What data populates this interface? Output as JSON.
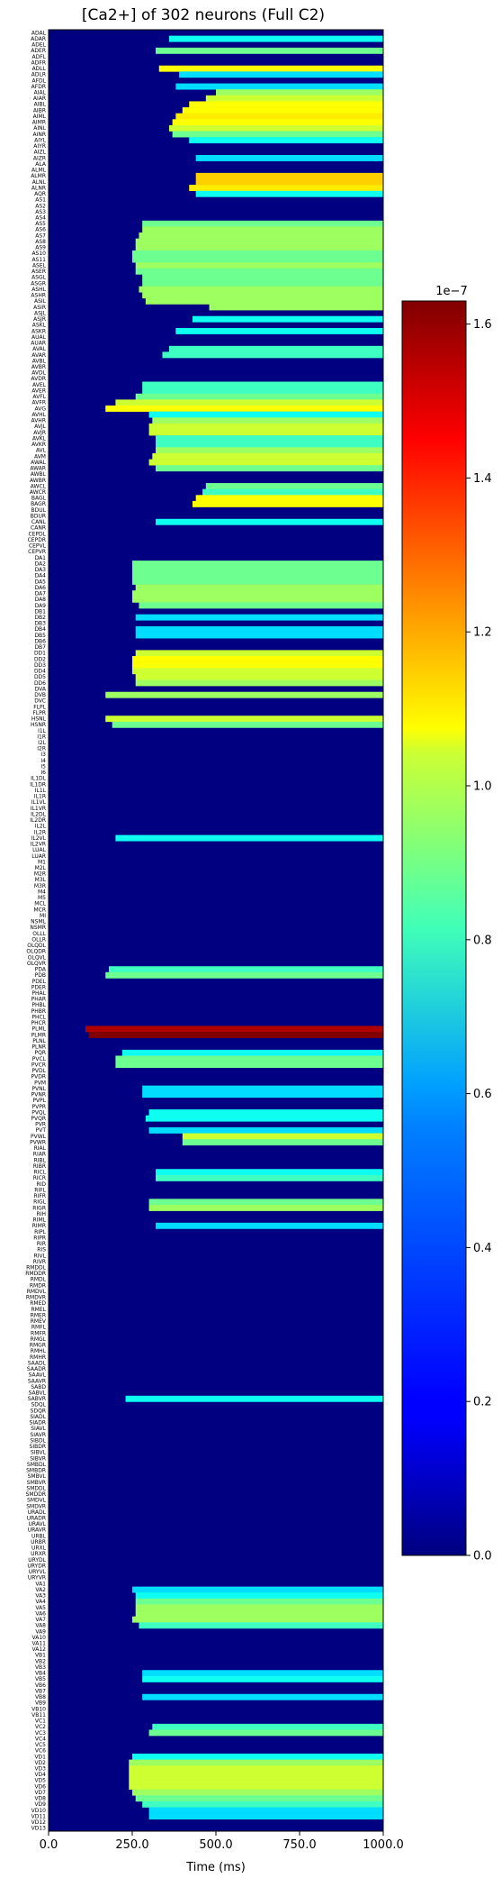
{
  "chart_data": {
    "type": "heatmap",
    "title": "[Ca2+] of 302 neurons (Full C2)",
    "xlabel": "Time (ms)",
    "ylabel": "",
    "xlim": [
      0,
      1000
    ],
    "x_ticks": [
      0,
      250,
      500,
      750,
      1000
    ],
    "x_tick_labels": [
      "0.0",
      "250.0",
      "500.0",
      "750.0",
      "1000.0"
    ],
    "n_rows": 302,
    "colormap": "jet",
    "colorbar": {
      "vmin": 0,
      "vmax": 1.63e-07,
      "ticks": [
        0,
        0.2,
        0.4,
        0.6,
        0.8,
        1.0,
        1.2,
        1.4,
        1.6
      ],
      "tick_labels": [
        "0.0",
        "0.2",
        "0.4",
        "0.6",
        "0.8",
        "1.0",
        "1.2",
        "1.4",
        "1.6"
      ],
      "offset_label": "1e−7",
      "placement": "right"
    },
    "neurons": [
      "ADAL",
      "ADAR",
      "ADEL",
      "ADER",
      "ADFL",
      "ADFR",
      "ADLL",
      "ADLR",
      "AFDL",
      "AFDR",
      "AIAL",
      "AIAR",
      "AIBL",
      "AIBR",
      "AIML",
      "AIMR",
      "AINL",
      "AINR",
      "AIYL",
      "AIYR",
      "AIZL",
      "AIZR",
      "ALA",
      "ALML",
      "ALMR",
      "ALNL",
      "ALNR",
      "AQR",
      "AS1",
      "AS2",
      "AS3",
      "AS4",
      "AS5",
      "AS6",
      "AS7",
      "AS8",
      "AS9",
      "AS10",
      "AS11",
      "ASEL",
      "ASER",
      "ASGL",
      "ASGR",
      "ASHL",
      "ASHR",
      "ASIL",
      "ASIR",
      "ASJL",
      "ASJR",
      "ASKL",
      "ASKR",
      "AUAL",
      "AUAR",
      "AVAL",
      "AVAR",
      "AVBL",
      "AVBR",
      "AVDL",
      "AVDR",
      "AVEL",
      "AVER",
      "AVFL",
      "AVFR",
      "AVG",
      "AVHL",
      "AVHR",
      "AVJL",
      "AVJR",
      "AVKL",
      "AVKR",
      "AVL",
      "AVM",
      "AWAL",
      "AWAR",
      "AWBL",
      "AWBR",
      "AWCL",
      "AWCR",
      "BAGL",
      "BAGR",
      "BDUL",
      "BDUR",
      "CANL",
      "CANR",
      "CEPDL",
      "CEPDR",
      "CEPVL",
      "CEPVR",
      "DA1",
      "DA2",
      "DA3",
      "DA4",
      "DA5",
      "DA6",
      "DA7",
      "DA8",
      "DA9",
      "DB1",
      "DB2",
      "DB3",
      "DB4",
      "DB5",
      "DB6",
      "DB7",
      "DD1",
      "DD2",
      "DD3",
      "DD4",
      "DD5",
      "DD6",
      "DVA",
      "DVB",
      "DVC",
      "FLPL",
      "FLPR",
      "HSNL",
      "HSNR",
      "I1L",
      "I1R",
      "I2L",
      "I2R",
      "I3",
      "I4",
      "I5",
      "I6",
      "IL1DL",
      "IL1DR",
      "IL1L",
      "IL1R",
      "IL1VL",
      "IL1VR",
      "IL2DL",
      "IL2DR",
      "IL2L",
      "IL2R",
      "IL2VL",
      "IL2VR",
      "LUAL",
      "LUAR",
      "M1",
      "M2L",
      "M2R",
      "M3L",
      "M3R",
      "M4",
      "M5",
      "MCL",
      "MCR",
      "MI",
      "NSML",
      "NSMR",
      "OLLL",
      "OLLR",
      "OLQDL",
      "OLQDR",
      "OLQVL",
      "OLQVR",
      "PDA",
      "PDB",
      "PDEL",
      "PDER",
      "PHAL",
      "PHAR",
      "PHBL",
      "PHBR",
      "PHCL",
      "PHCR",
      "PLML",
      "PLMR",
      "PLNL",
      "PLNR",
      "PQR",
      "PVCL",
      "PVCR",
      "PVDL",
      "PVDR",
      "PVM",
      "PVNL",
      "PVNR",
      "PVPL",
      "PVPR",
      "PVQL",
      "PVQR",
      "PVR",
      "PVT",
      "PVWL",
      "PVWR",
      "RIAL",
      "RIAR",
      "RIBL",
      "RIBR",
      "RICL",
      "RICR",
      "RID",
      "RIFL",
      "RIFR",
      "RIGL",
      "RIGR",
      "RIH",
      "RIML",
      "RIMR",
      "RIPL",
      "RIPR",
      "RIR",
      "RIS",
      "RIVL",
      "RIVR",
      "RMDDL",
      "RMDDR",
      "RMDL",
      "RMDR",
      "RMDVL",
      "RMDVR",
      "RMED",
      "RMEL",
      "RMER",
      "RMEV",
      "RMFL",
      "RMFR",
      "RMGL",
      "RMGR",
      "RMHL",
      "RMHR",
      "SAADL",
      "SAADR",
      "SAAVL",
      "SAAVR",
      "SABD",
      "SABVL",
      "SABVR",
      "SDQL",
      "SDQR",
      "SIADL",
      "SIADR",
      "SIAVL",
      "SIAVR",
      "SIBDL",
      "SIBDR",
      "SIBVL",
      "SIBVR",
      "SMBDL",
      "SMBDR",
      "SMBVL",
      "SMBVR",
      "SMDDL",
      "SMDDR",
      "SMDVL",
      "SMDVR",
      "URADL",
      "URADR",
      "URAVL",
      "URAVR",
      "URBL",
      "URBR",
      "URXL",
      "URXR",
      "URYDL",
      "URYDR",
      "URYVL",
      "URYVR",
      "VA1",
      "VA2",
      "VA3",
      "VA4",
      "VA5",
      "VA6",
      "VA7",
      "VA8",
      "VA9",
      "VA10",
      "VA11",
      "VA12",
      "VB1",
      "VB2",
      "VB3",
      "VB4",
      "VB5",
      "VB6",
      "VB7",
      "VB8",
      "VB9",
      "VB10",
      "VB11",
      "VC1",
      "VC2",
      "VC3",
      "VC4",
      "VC5",
      "VC6",
      "VD1",
      "VD2",
      "VD3",
      "VD4",
      "VD5",
      "VD6",
      "VD7",
      "VD8",
      "VD9",
      "VD10",
      "VD11",
      "VD12",
      "VD13"
    ],
    "active_rows": [
      {
        "neuron": "ADAR",
        "onset": 360,
        "level": 0.35
      },
      {
        "neuron": "ADER",
        "onset": 320,
        "level": 0.45
      },
      {
        "neuron": "ADLL",
        "onset": 330,
        "level": 0.6
      },
      {
        "neuron": "ADLR",
        "onset": 390,
        "level": 0.3
      },
      {
        "neuron": "AFDR",
        "onset": 380,
        "level": 0.3
      },
      {
        "neuron": "AIAL",
        "onset": 500,
        "level": 0.5
      },
      {
        "neuron": "AIAR",
        "onset": 470,
        "level": 0.55
      },
      {
        "neuron": "AIBL",
        "onset": 420,
        "level": 0.6
      },
      {
        "neuron": "AIBR",
        "onset": 400,
        "level": 0.6
      },
      {
        "neuron": "AIML",
        "onset": 380,
        "level": 0.62
      },
      {
        "neuron": "AIMR",
        "onset": 370,
        "level": 0.6
      },
      {
        "neuron": "AINL",
        "onset": 360,
        "level": 0.55
      },
      {
        "neuron": "AINR",
        "onset": 370,
        "level": 0.45
      },
      {
        "neuron": "AIYL",
        "onset": 420,
        "level": 0.35
      },
      {
        "neuron": "AIZR",
        "onset": 440,
        "level": 0.3
      },
      {
        "neuron": "ALMR",
        "onset": 440,
        "level": 0.65
      },
      {
        "neuron": "ALNL",
        "onset": 440,
        "level": 0.65
      },
      {
        "neuron": "ALNR",
        "onset": 420,
        "level": 0.62
      },
      {
        "neuron": "AQR",
        "onset": 440,
        "level": 0.35
      },
      {
        "neuron": "AS5",
        "onset": 280,
        "level": 0.45
      },
      {
        "neuron": "AS6",
        "onset": 280,
        "level": 0.5
      },
      {
        "neuron": "AS7",
        "onset": 270,
        "level": 0.5
      },
      {
        "neuron": "AS8",
        "onset": 260,
        "level": 0.5
      },
      {
        "neuron": "AS9",
        "onset": 260,
        "level": 0.5
      },
      {
        "neuron": "AS10",
        "onset": 250,
        "level": 0.45
      },
      {
        "neuron": "AS11",
        "onset": 250,
        "level": 0.45
      },
      {
        "neuron": "ASEL",
        "onset": 260,
        "level": 0.5
      },
      {
        "neuron": "ASER",
        "onset": 260,
        "level": 0.45
      },
      {
        "neuron": "ASGL",
        "onset": 280,
        "level": 0.45
      },
      {
        "neuron": "ASGR",
        "onset": 280,
        "level": 0.45
      },
      {
        "neuron": "ASHL",
        "onset": 270,
        "level": 0.5
      },
      {
        "neuron": "ASHR",
        "onset": 280,
        "level": 0.5
      },
      {
        "neuron": "ASIL",
        "onset": 290,
        "level": 0.5
      },
      {
        "neuron": "ASIR",
        "onset": 480,
        "level": 0.5
      },
      {
        "neuron": "ASJR",
        "onset": 430,
        "level": 0.35
      },
      {
        "neuron": "ASKR",
        "onset": 380,
        "level": 0.35
      },
      {
        "neuron": "AVAL",
        "onset": 360,
        "level": 0.4
      },
      {
        "neuron": "AVAR",
        "onset": 340,
        "level": 0.4
      },
      {
        "neuron": "AVEL",
        "onset": 280,
        "level": 0.4
      },
      {
        "neuron": "AVER",
        "onset": 280,
        "level": 0.4
      },
      {
        "neuron": "AVFL",
        "onset": 260,
        "level": 0.45
      },
      {
        "neuron": "AVFR",
        "onset": 200,
        "level": 0.55
      },
      {
        "neuron": "AVG",
        "onset": 170,
        "level": 0.6
      },
      {
        "neuron": "AVHL",
        "onset": 300,
        "level": 0.35
      },
      {
        "neuron": "AVHR",
        "onset": 310,
        "level": 0.5
      },
      {
        "neuron": "AVJL",
        "onset": 300,
        "level": 0.55
      },
      {
        "neuron": "AVJR",
        "onset": 300,
        "level": 0.55
      },
      {
        "neuron": "AVKL",
        "onset": 320,
        "level": 0.4
      },
      {
        "neuron": "AVKR",
        "onset": 320,
        "level": 0.4
      },
      {
        "neuron": "AVL",
        "onset": 320,
        "level": 0.5
      },
      {
        "neuron": "AVM",
        "onset": 310,
        "level": 0.55
      },
      {
        "neuron": "AWAL",
        "onset": 300,
        "level": 0.55
      },
      {
        "neuron": "AWAR",
        "onset": 320,
        "level": 0.45
      },
      {
        "neuron": "AWCL",
        "onset": 470,
        "level": 0.45
      },
      {
        "neuron": "AWCR",
        "onset": 460,
        "level": 0.4
      },
      {
        "neuron": "BAGL",
        "onset": 440,
        "level": 0.6
      },
      {
        "neuron": "BAGR",
        "onset": 430,
        "level": 0.6
      },
      {
        "neuron": "CANL",
        "onset": 320,
        "level": 0.35
      },
      {
        "neuron": "DA2",
        "onset": 250,
        "level": 0.45
      },
      {
        "neuron": "DA3",
        "onset": 250,
        "level": 0.45
      },
      {
        "neuron": "DA4",
        "onset": 250,
        "level": 0.45
      },
      {
        "neuron": "DA5",
        "onset": 250,
        "level": 0.45
      },
      {
        "neuron": "DA6",
        "onset": 260,
        "level": 0.5
      },
      {
        "neuron": "DA7",
        "onset": 250,
        "level": 0.5
      },
      {
        "neuron": "DA8",
        "onset": 250,
        "level": 0.5
      },
      {
        "neuron": "DA9",
        "onset": 270,
        "level": 0.45
      },
      {
        "neuron": "DB2",
        "onset": 260,
        "level": 0.3
      },
      {
        "neuron": "DB4",
        "onset": 260,
        "level": 0.3
      },
      {
        "neuron": "DB5",
        "onset": 260,
        "level": 0.3
      },
      {
        "neuron": "DD1",
        "onset": 260,
        "level": 0.55
      },
      {
        "neuron": "DD2",
        "onset": 250,
        "level": 0.6
      },
      {
        "neuron": "DD3",
        "onset": 250,
        "level": 0.6
      },
      {
        "neuron": "DD4",
        "onset": 250,
        "level": 0.55
      },
      {
        "neuron": "DD5",
        "onset": 260,
        "level": 0.55
      },
      {
        "neuron": "DD6",
        "onset": 260,
        "level": 0.5
      },
      {
        "neuron": "DVB",
        "onset": 170,
        "level": 0.5
      },
      {
        "neuron": "HSNL",
        "onset": 170,
        "level": 0.55
      },
      {
        "neuron": "HSNR",
        "onset": 190,
        "level": 0.45
      },
      {
        "neuron": "IL2VL",
        "onset": 200,
        "level": 0.35
      },
      {
        "neuron": "PDA",
        "onset": 180,
        "level": 0.4
      },
      {
        "neuron": "PDB",
        "onset": 170,
        "level": 0.45
      },
      {
        "neuron": "PLML",
        "onset": 110,
        "level": 0.95
      },
      {
        "neuron": "PLMR",
        "onset": 120,
        "level": 1.0
      },
      {
        "neuron": "PQR",
        "onset": 220,
        "level": 0.35
      },
      {
        "neuron": "PVCL",
        "onset": 200,
        "level": 0.45
      },
      {
        "neuron": "PVCR",
        "onset": 200,
        "level": 0.45
      },
      {
        "neuron": "PVNL",
        "onset": 280,
        "level": 0.3
      },
      {
        "neuron": "PVNR",
        "onset": 280,
        "level": 0.3
      },
      {
        "neuron": "PVQL",
        "onset": 300,
        "level": 0.35
      },
      {
        "neuron": "PVQR",
        "onset": 290,
        "level": 0.35
      },
      {
        "neuron": "PVT",
        "onset": 300,
        "level": 0.3
      },
      {
        "neuron": "PVWL",
        "onset": 400,
        "level": 0.55
      },
      {
        "neuron": "PVWR",
        "onset": 400,
        "level": 0.45
      },
      {
        "neuron": "RICL",
        "onset": 320,
        "level": 0.35
      },
      {
        "neuron": "RICR",
        "onset": 320,
        "level": 0.4
      },
      {
        "neuron": "RIGL",
        "onset": 300,
        "level": 0.45
      },
      {
        "neuron": "RIGR",
        "onset": 300,
        "level": 0.5
      },
      {
        "neuron": "RIMR",
        "onset": 320,
        "level": 0.3
      },
      {
        "neuron": "SABVR",
        "onset": 230,
        "level": 0.35
      },
      {
        "neuron": "VA2",
        "onset": 250,
        "level": 0.3
      },
      {
        "neuron": "VA3",
        "onset": 260,
        "level": 0.35
      },
      {
        "neuron": "VA4",
        "onset": 260,
        "level": 0.45
      },
      {
        "neuron": "VA5",
        "onset": 260,
        "level": 0.5
      },
      {
        "neuron": "VA6",
        "onset": 260,
        "level": 0.5
      },
      {
        "neuron": "VA7",
        "onset": 250,
        "level": 0.5
      },
      {
        "neuron": "VA8",
        "onset": 270,
        "level": 0.4
      },
      {
        "neuron": "VB4",
        "onset": 280,
        "level": 0.3
      },
      {
        "neuron": "VB5",
        "onset": 280,
        "level": 0.35
      },
      {
        "neuron": "VB8",
        "onset": 280,
        "level": 0.3
      },
      {
        "neuron": "VC2",
        "onset": 310,
        "level": 0.4
      },
      {
        "neuron": "VC3",
        "onset": 300,
        "level": 0.45
      },
      {
        "neuron": "VD1",
        "onset": 250,
        "level": 0.35
      },
      {
        "neuron": "VD2",
        "onset": 240,
        "level": 0.5
      },
      {
        "neuron": "VD3",
        "onset": 240,
        "level": 0.55
      },
      {
        "neuron": "VD4",
        "onset": 240,
        "level": 0.55
      },
      {
        "neuron": "VD5",
        "onset": 240,
        "level": 0.55
      },
      {
        "neuron": "VD6",
        "onset": 240,
        "level": 0.55
      },
      {
        "neuron": "VD7",
        "onset": 250,
        "level": 0.5
      },
      {
        "neuron": "VD8",
        "onset": 260,
        "level": 0.45
      },
      {
        "neuron": "VD9",
        "onset": 280,
        "level": 0.4
      },
      {
        "neuron": "VD10",
        "onset": 300,
        "level": 0.3
      },
      {
        "neuron": "VD11",
        "onset": 300,
        "level": 0.3
      }
    ]
  }
}
